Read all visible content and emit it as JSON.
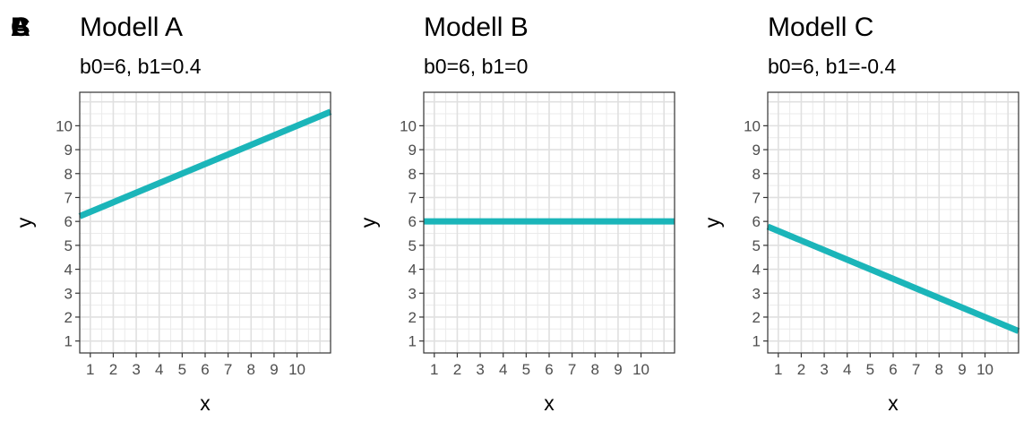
{
  "chart_data": [
    {
      "type": "line",
      "tag": "A",
      "title": "Modell A",
      "subtitle": "b0=6, b1=0.4",
      "xlabel": "x",
      "ylabel": "y",
      "xticks": [
        1,
        2,
        3,
        4,
        5,
        6,
        7,
        8,
        9,
        10
      ],
      "yticks": [
        1,
        2,
        3,
        4,
        5,
        6,
        7,
        8,
        9,
        10
      ],
      "xlim": [
        0.54,
        11.46
      ],
      "ylim": [
        0.5,
        11.4
      ],
      "grid": true,
      "line_color": "#1BB5B9",
      "intercept": 6,
      "slope": 0.4,
      "x": [
        0.54,
        11.46
      ],
      "y": [
        6.216,
        10.584
      ]
    },
    {
      "type": "line",
      "tag": "B",
      "title": "Modell B",
      "subtitle": "b0=6, b1=0",
      "xlabel": "x",
      "ylabel": "y",
      "xticks": [
        1,
        2,
        3,
        4,
        5,
        6,
        7,
        8,
        9,
        10
      ],
      "yticks": [
        1,
        2,
        3,
        4,
        5,
        6,
        7,
        8,
        9,
        10
      ],
      "xlim": [
        0.54,
        11.46
      ],
      "ylim": [
        0.5,
        11.4
      ],
      "grid": true,
      "line_color": "#1BB5B9",
      "intercept": 6,
      "slope": 0,
      "x": [
        0.54,
        11.46
      ],
      "y": [
        6,
        6
      ]
    },
    {
      "type": "line",
      "tag": "C",
      "title": "Modell C",
      "subtitle": "b0=6, b1=-0.4",
      "xlabel": "x",
      "ylabel": "y",
      "xticks": [
        1,
        2,
        3,
        4,
        5,
        6,
        7,
        8,
        9,
        10
      ],
      "yticks": [
        1,
        2,
        3,
        4,
        5,
        6,
        7,
        8,
        9,
        10
      ],
      "xlim": [
        0.54,
        11.46
      ],
      "ylim": [
        0.5,
        11.4
      ],
      "grid": true,
      "line_color": "#1BB5B9",
      "intercept": 6,
      "slope": -0.4,
      "x": [
        0.54,
        11.46
      ],
      "y": [
        5.784,
        1.416
      ]
    }
  ]
}
